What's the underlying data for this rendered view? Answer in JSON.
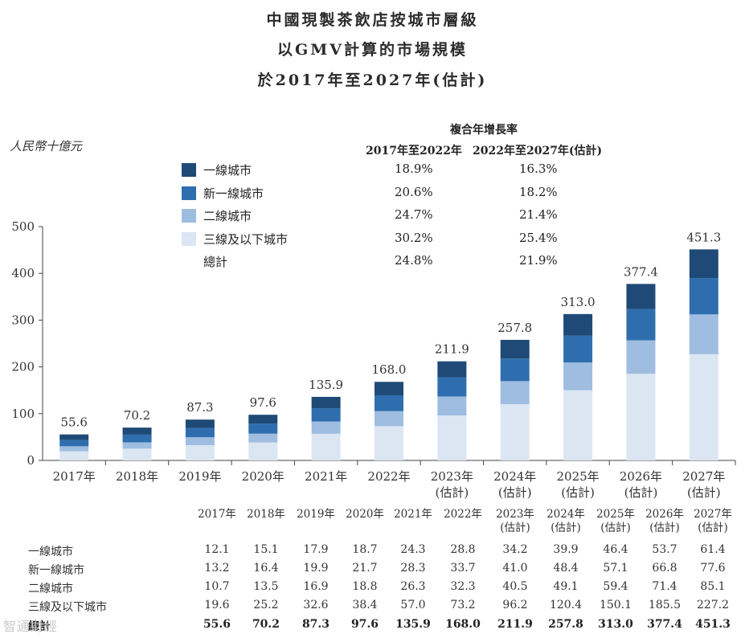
{
  "title": {
    "line1": "中國現製茶飲店按城市層級",
    "line2": "以GMV計算的市場規模",
    "line3": "於2017年至2027年(估計)"
  },
  "unit_label": "人民幣十億元",
  "cagr": {
    "header": "複合年增長率",
    "period1": "2017年至2022年",
    "period2": "2022年至2027年(估計)",
    "rows": [
      {
        "label": "一線城市",
        "c1": "18.9%",
        "c2": "16.3%",
        "color": "#1f4a77"
      },
      {
        "label": "新一線城市",
        "c1": "20.6%",
        "c2": "18.2%",
        "color": "#2f6eae"
      },
      {
        "label": "二線城市",
        "c1": "24.7%",
        "c2": "21.4%",
        "color": "#9ebde0"
      },
      {
        "label": "三線及以下城市",
        "c1": "30.2%",
        "c2": "25.4%",
        "color": "#dbe6f2"
      },
      {
        "label": "總計",
        "c1": "24.8%",
        "c2": "21.9%"
      }
    ]
  },
  "chart_data": {
    "type": "bar",
    "stacked": true,
    "ylabel": "人民幣十億元",
    "ylim": [
      0,
      500
    ],
    "yticks": [
      0,
      100,
      200,
      300,
      400,
      500
    ],
    "categories": [
      "2017年",
      "2018年",
      "2019年",
      "2020年",
      "2021年",
      "2022年",
      "2023年",
      "2024年",
      "2025年",
      "2026年",
      "2027年"
    ],
    "category_notes": [
      "",
      "",
      "",
      "",
      "",
      "",
      "(估計)",
      "(估計)",
      "(估計)",
      "(估計)",
      "(估計)"
    ],
    "series": [
      {
        "name": "三線及以下城市",
        "color": "#dbe6f2",
        "values": [
          19.6,
          25.2,
          32.6,
          38.4,
          57.0,
          73.2,
          96.2,
          120.4,
          150.1,
          185.5,
          227.2
        ]
      },
      {
        "name": "二線城市",
        "color": "#9ebde0",
        "values": [
          10.7,
          13.5,
          16.9,
          18.8,
          26.3,
          32.3,
          40.5,
          49.1,
          59.4,
          71.4,
          85.1
        ]
      },
      {
        "name": "新一線城市",
        "color": "#2f6eae",
        "values": [
          13.2,
          16.4,
          19.9,
          21.7,
          28.3,
          33.7,
          41.0,
          48.4,
          57.1,
          66.8,
          77.6
        ]
      },
      {
        "name": "一線城市",
        "color": "#1f4a77",
        "values": [
          12.1,
          15.1,
          17.9,
          18.7,
          24.3,
          28.8,
          34.2,
          39.9,
          46.4,
          53.7,
          61.4
        ]
      }
    ],
    "totals": [
      "55.6",
      "70.2",
      "87.3",
      "97.6",
      "135.9",
      "168.0",
      "211.9",
      "257.8",
      "313.0",
      "377.4",
      "451.3"
    ]
  },
  "table": {
    "headers": [
      "2017年",
      "2018年",
      "2019年",
      "2020年",
      "2021年",
      "2022年",
      "2023年",
      "2024年",
      "2025年",
      "2026年",
      "2027年"
    ],
    "header_notes": [
      "",
      "",
      "",
      "",
      "",
      "",
      "(估計)",
      "(估計)",
      "(估計)",
      "(估計)",
      "(估計)"
    ],
    "rows": [
      {
        "label": "一線城市",
        "values": [
          "12.1",
          "15.1",
          "17.9",
          "18.7",
          "24.3",
          "28.8",
          "34.2",
          "39.9",
          "46.4",
          "53.7",
          "61.4"
        ]
      },
      {
        "label": "新一線城市",
        "values": [
          "13.2",
          "16.4",
          "19.9",
          "21.7",
          "28.3",
          "33.7",
          "41.0",
          "48.4",
          "57.1",
          "66.8",
          "77.6"
        ]
      },
      {
        "label": "二線城市",
        "values": [
          "10.7",
          "13.5",
          "16.9",
          "18.8",
          "26.3",
          "32.3",
          "40.5",
          "49.1",
          "59.4",
          "71.4",
          "85.1"
        ]
      },
      {
        "label": "三線及以下城市",
        "values": [
          "19.6",
          "25.2",
          "32.6",
          "38.4",
          "57.0",
          "73.2",
          "96.2",
          "120.4",
          "150.1",
          "185.5",
          "227.2"
        ]
      },
      {
        "label": "總計",
        "values": [
          "55.6",
          "70.2",
          "87.3",
          "97.6",
          "135.9",
          "168.0",
          "211.9",
          "257.8",
          "313.0",
          "377.4",
          "451.3"
        ]
      }
    ]
  },
  "watermark": "智通財經"
}
